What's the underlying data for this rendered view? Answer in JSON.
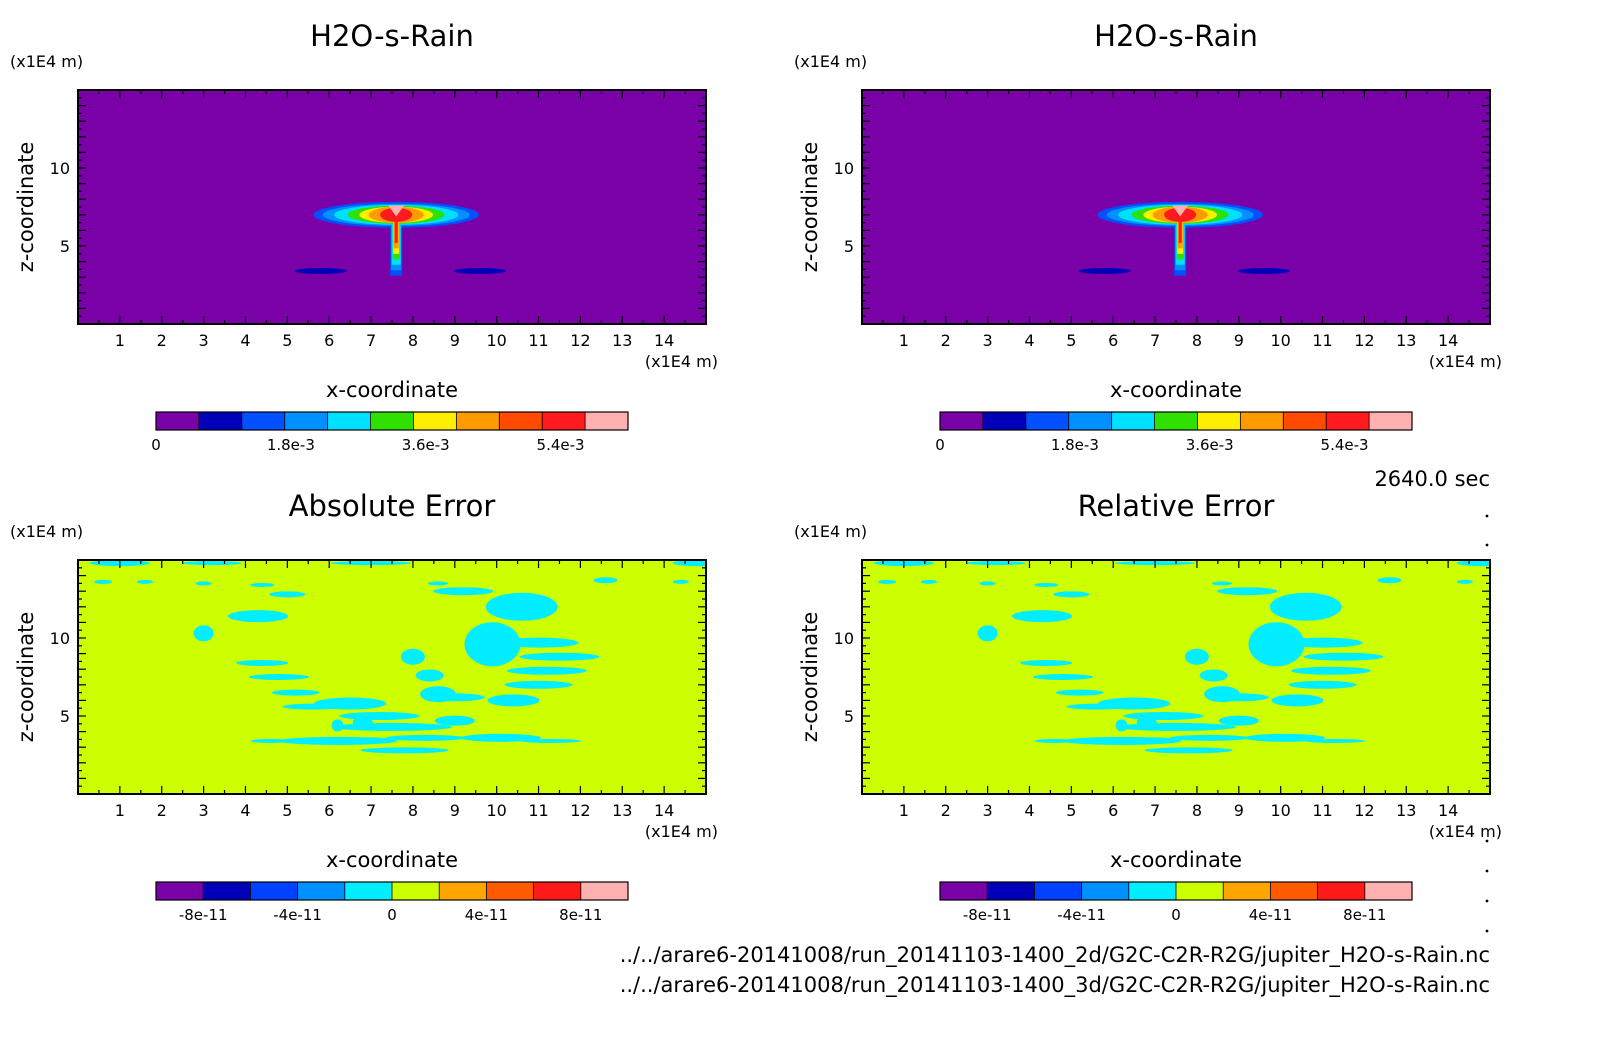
{
  "time_label": "2640.0 sec",
  "files": [
    "../../arare6-20141008/run_20141103-1400_2d/G2C-C2R-R2G/jupiter_H2O-s-Rain.nc",
    "../../arare6-20141008/run_20141103-1400_3d/G2C-C2R-R2G/jupiter_H2O-s-Rain.nc"
  ],
  "colors": {
    "rain_levels": [
      "#7a00a8",
      "#0000b8",
      "#0050ff",
      "#0090ff",
      "#00e0ff",
      "#30e000",
      "#ffee00",
      "#ff9a00",
      "#ff4a00",
      "#ff1a20",
      "#ffb0b0"
    ],
    "error_levels": [
      "#7a00a8",
      "#0000b8",
      "#0040ff",
      "#0090ff",
      "#00eeff",
      "#ccff00",
      "#ffa500",
      "#ff5a00",
      "#ff1a1a",
      "#ffb0b0"
    ]
  },
  "chart_data": [
    {
      "type": "heatmap",
      "title": "H2O-s-Rain",
      "xlabel": "x-coordinate",
      "ylabel": "z-coordinate",
      "x_unit": "(x1E4 m)",
      "y_unit": "(x1E4 m)",
      "xlim": [
        0,
        15
      ],
      "ylim": [
        0,
        15
      ],
      "x_ticks": [
        "1",
        "2",
        "3",
        "4",
        "5",
        "6",
        "7",
        "8",
        "9",
        "10",
        "11",
        "12",
        "13",
        "14"
      ],
      "y_ticks": [
        "5",
        "10"
      ],
      "colorbar_ticks": [
        "0",
        "1.8e-3",
        "3.6e-3",
        "5.4e-3"
      ],
      "colorbar_range": [
        0,
        0.0063
      ],
      "field_max_approx": 0.0063,
      "feature": "anvil-shaped rain plume centered near x=7.6, z=3-8"
    },
    {
      "type": "heatmap",
      "title": "H2O-s-Rain",
      "xlabel": "x-coordinate",
      "ylabel": "z-coordinate",
      "x_unit": "(x1E4 m)",
      "y_unit": "(x1E4 m)",
      "xlim": [
        0,
        15
      ],
      "ylim": [
        0,
        15
      ],
      "x_ticks": [
        "1",
        "2",
        "3",
        "4",
        "5",
        "6",
        "7",
        "8",
        "9",
        "10",
        "11",
        "12",
        "13",
        "14"
      ],
      "y_ticks": [
        "5",
        "10"
      ],
      "colorbar_ticks": [
        "0",
        "1.8e-3",
        "3.6e-3",
        "5.4e-3"
      ],
      "colorbar_range": [
        0,
        0.0063
      ],
      "field_max_approx": 0.0063,
      "feature": "anvil-shaped rain plume centered near x=7.6, z=3-8"
    },
    {
      "type": "heatmap",
      "title": "Absolute Error",
      "xlabel": "x-coordinate",
      "ylabel": "z-coordinate",
      "x_unit": "(x1E4 m)",
      "y_unit": "(x1E4 m)",
      "xlim": [
        0,
        15
      ],
      "ylim": [
        0,
        15
      ],
      "x_ticks": [
        "1",
        "2",
        "3",
        "4",
        "5",
        "6",
        "7",
        "8",
        "9",
        "10",
        "11",
        "12",
        "13",
        "14"
      ],
      "y_ticks": [
        "5",
        "10"
      ],
      "colorbar_ticks": [
        "-8e-11",
        "-4e-11",
        "0",
        "4e-11",
        "8e-11"
      ],
      "colorbar_range": [
        -1e-10,
        1e-10
      ],
      "background_level": "0 to 2e-11",
      "feature": "patches of -2e-11 to 0 in a V shape spanning x=3-12, z=3-14"
    },
    {
      "type": "heatmap",
      "title": "Relative Error",
      "xlabel": "x-coordinate",
      "ylabel": "z-coordinate",
      "x_unit": "(x1E4 m)",
      "y_unit": "(x1E4 m)",
      "xlim": [
        0,
        15
      ],
      "ylim": [
        0,
        15
      ],
      "x_ticks": [
        "1",
        "2",
        "3",
        "4",
        "5",
        "6",
        "7",
        "8",
        "9",
        "10",
        "11",
        "12",
        "13",
        "14"
      ],
      "y_ticks": [
        "5",
        "10"
      ],
      "colorbar_ticks": [
        "-8e-11",
        "-4e-11",
        "0",
        "4e-11",
        "8e-11"
      ],
      "colorbar_range": [
        -1e-10,
        1e-10
      ],
      "background_level": "0 to 2e-11",
      "feature": "patches of -2e-11 to 0 in a V shape spanning x=3-12, z=3-14"
    }
  ]
}
